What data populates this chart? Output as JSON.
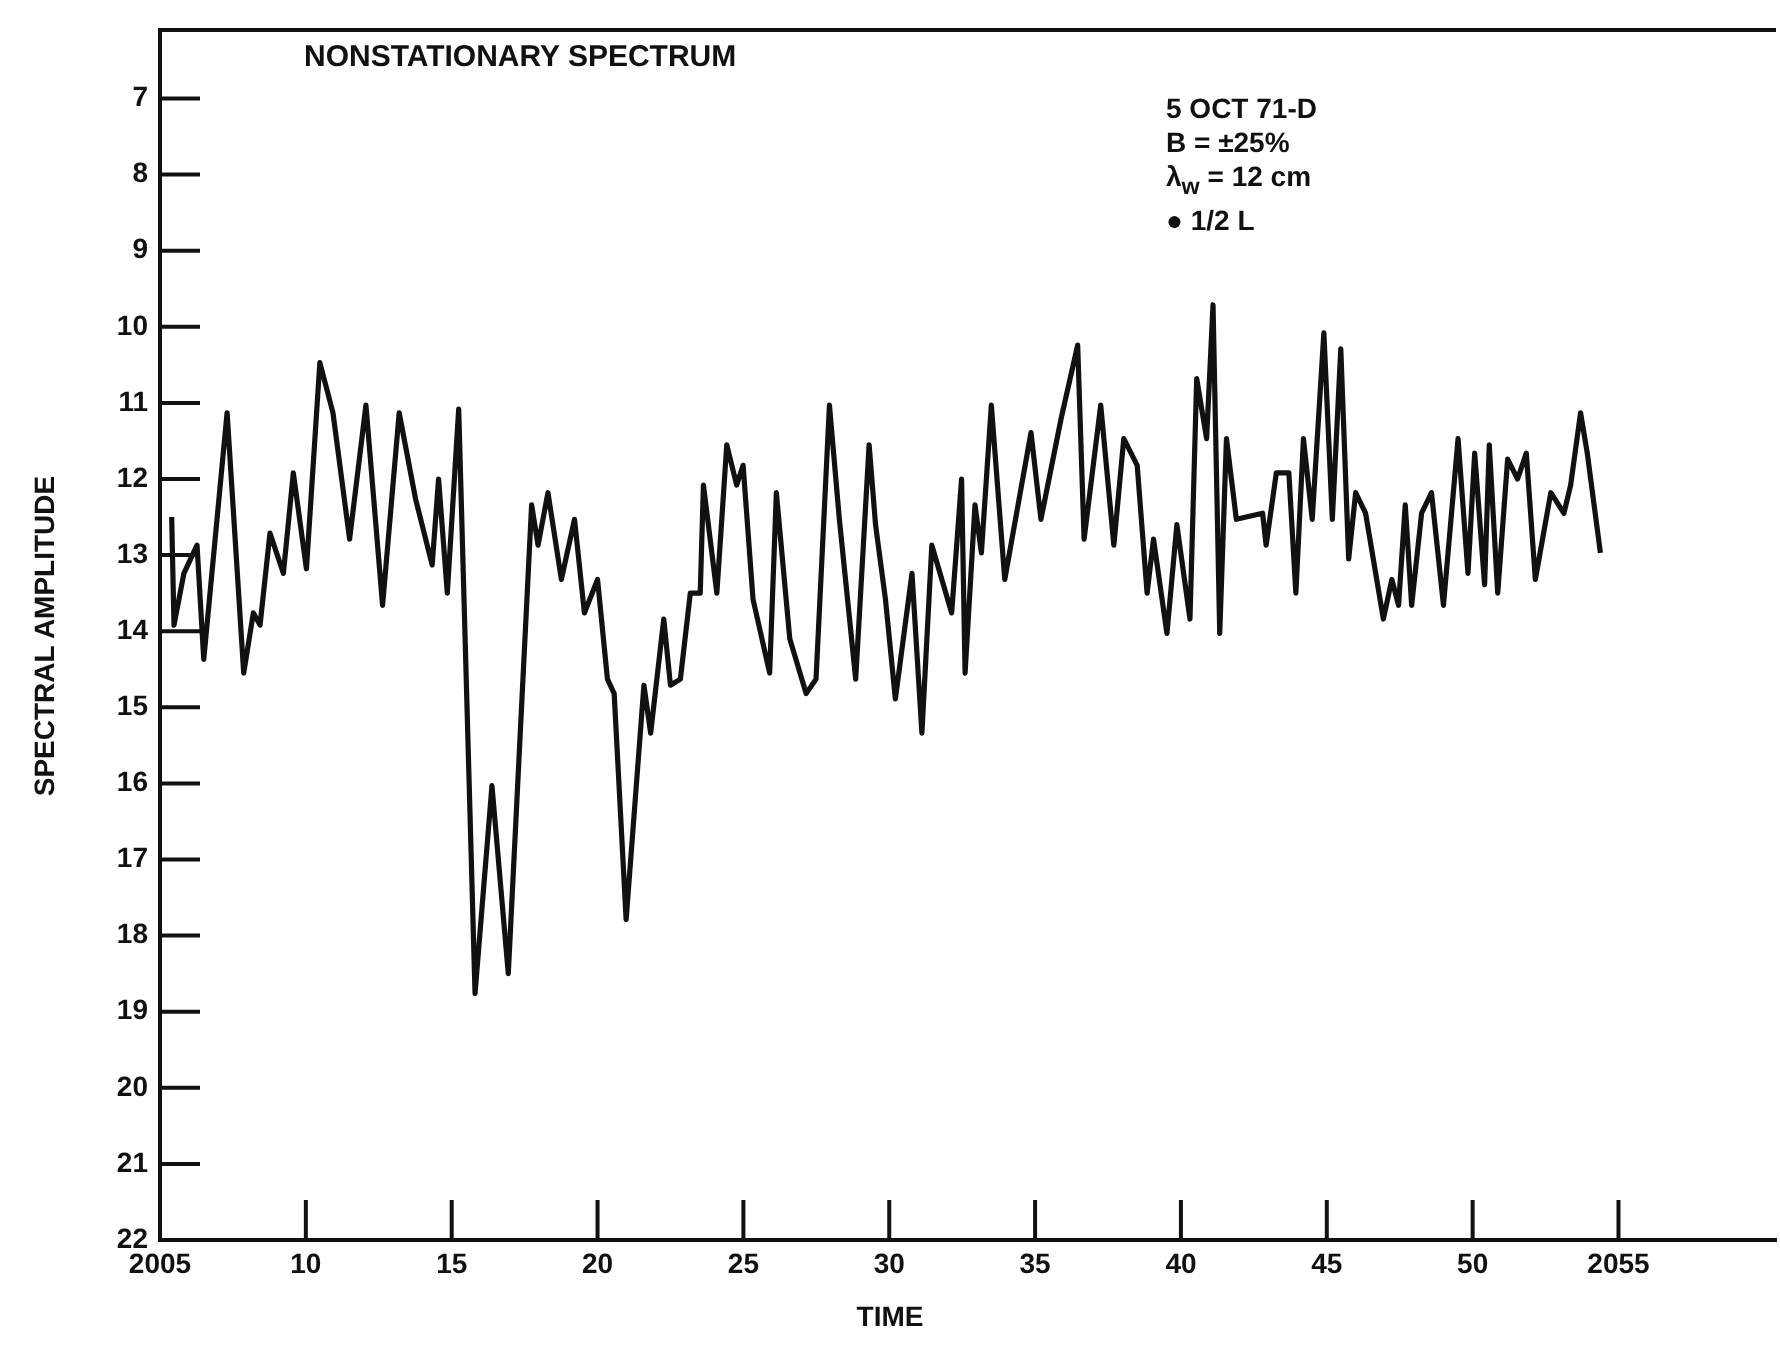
{
  "chart_data": {
    "type": "line",
    "title": "NONSTATIONARY SPECTRUM",
    "xlabel": "TIME",
    "ylabel": "SPECTRAL AMPLITUDE",
    "annotations": [
      "5 OCT 71-D",
      "B = ±25%",
      "λ$_{w}$ = 12 cm",
      "● 1/2 L"
    ],
    "xlim": [
      2005,
      2060.4
    ],
    "ylim": [
      22,
      6.1
    ],
    "xticks": [
      2005,
      {
        "value": 2010,
        "label": "10"
      },
      {
        "value": 2015,
        "label": "15"
      },
      {
        "value": 2020,
        "label": "20"
      },
      {
        "value": 2025,
        "label": "25"
      },
      {
        "value": 2030,
        "label": "30"
      },
      {
        "value": 2035,
        "label": "35"
      },
      {
        "value": 2040,
        "label": "40"
      },
      {
        "value": 2045,
        "label": "45"
      },
      {
        "value": 2050,
        "label": "50"
      },
      2055
    ],
    "yticks": [
      7,
      8,
      9,
      10,
      11,
      12,
      13,
      14,
      15,
      16,
      17,
      18,
      19,
      20,
      21,
      22
    ],
    "grid": false,
    "legend": false,
    "marker": "none",
    "line_style": "solid",
    "series": [
      {
        "color": "#111111",
        "x": [
          2005.4,
          2005.48,
          2005.82,
          2006.27,
          2006.5,
          2007.3,
          2007.87,
          2008.2,
          2008.43,
          2008.77,
          2009.23,
          2009.57,
          2010.02,
          2010.48,
          2010.93,
          2011.5,
          2012.06,
          2012.63,
          2013.2,
          2013.76,
          2014.33,
          2014.55,
          2014.85,
          2015.24,
          2015.8,
          2016.38,
          2016.94,
          2017.74,
          2017.96,
          2018.3,
          2018.76,
          2019.21,
          2019.55,
          2020.0,
          2020.34,
          2020.57,
          2020.98,
          2021.59,
          2021.82,
          2022.27,
          2022.5,
          2022.84,
          2023.18,
          2023.52,
          2023.63,
          2024.09,
          2024.43,
          2024.77,
          2024.99,
          2025.33,
          2025.9,
          2026.13,
          2026.59,
          2027.15,
          2027.49,
          2027.95,
          2028.29,
          2028.85,
          2029.31,
          2029.53,
          2029.87,
          2030.21,
          2030.78,
          2031.12,
          2031.46,
          2032.14,
          2032.48,
          2032.6,
          2032.94,
          2033.16,
          2033.5,
          2033.96,
          2034.86,
          2035.2,
          2035.89,
          2036.46,
          2036.68,
          2037.25,
          2037.7,
          2038.04,
          2038.5,
          2038.84,
          2039.06,
          2039.52,
          2039.86,
          2040.31,
          2040.54,
          2040.88,
          2041.1,
          2041.33,
          2041.56,
          2041.9,
          2042.8,
          2042.92,
          2043.27,
          2043.7,
          2043.94,
          2044.2,
          2044.5,
          2044.9,
          2045.19,
          2045.48,
          2045.75,
          2045.99,
          2046.33,
          2046.94,
          2047.23,
          2047.46,
          2047.69,
          2047.91,
          2048.25,
          2048.59,
          2049.0,
          2049.5,
          2049.84,
          2050.07,
          2050.41,
          2050.57,
          2050.86,
          2051.2,
          2051.54,
          2051.84,
          2052.15,
          2052.68,
          2053.13,
          2053.36,
          2053.7,
          2053.93,
          2054.38
        ],
        "values": [
          12.5,
          13.92,
          13.24,
          12.87,
          14.37,
          11.13,
          14.55,
          13.76,
          13.92,
          12.71,
          13.24,
          11.92,
          13.18,
          10.47,
          11.13,
          12.79,
          11.03,
          13.66,
          11.13,
          12.26,
          13.13,
          12.0,
          13.5,
          11.08,
          18.76,
          16.03,
          18.5,
          12.34,
          12.87,
          12.18,
          13.32,
          12.53,
          13.76,
          13.32,
          14.63,
          14.82,
          17.79,
          14.71,
          15.34,
          13.84,
          14.71,
          14.63,
          13.5,
          13.5,
          12.08,
          13.5,
          11.55,
          12.08,
          11.82,
          13.58,
          14.55,
          12.18,
          14.1,
          14.82,
          14.63,
          11.03,
          12.53,
          14.63,
          11.55,
          12.6,
          13.58,
          14.89,
          13.24,
          15.34,
          12.87,
          13.76,
          12.0,
          14.55,
          12.34,
          12.97,
          11.03,
          13.32,
          11.39,
          12.53,
          11.21,
          10.24,
          12.79,
          11.03,
          12.87,
          11.47,
          11.82,
          13.5,
          12.79,
          14.03,
          12.6,
          13.84,
          10.68,
          11.47,
          9.71,
          14.03,
          11.47,
          12.53,
          12.45,
          12.87,
          11.92,
          11.92,
          13.5,
          11.47,
          12.53,
          10.08,
          12.53,
          10.29,
          13.05,
          12.18,
          12.45,
          13.84,
          13.32,
          13.66,
          12.34,
          13.66,
          12.45,
          12.18,
          13.66,
          11.47,
          13.24,
          11.66,
          13.39,
          11.55,
          13.5,
          11.74,
          12.0,
          11.66,
          13.32,
          12.18,
          12.45,
          12.08,
          11.13,
          11.66,
          12.97
        ]
      }
    ]
  }
}
